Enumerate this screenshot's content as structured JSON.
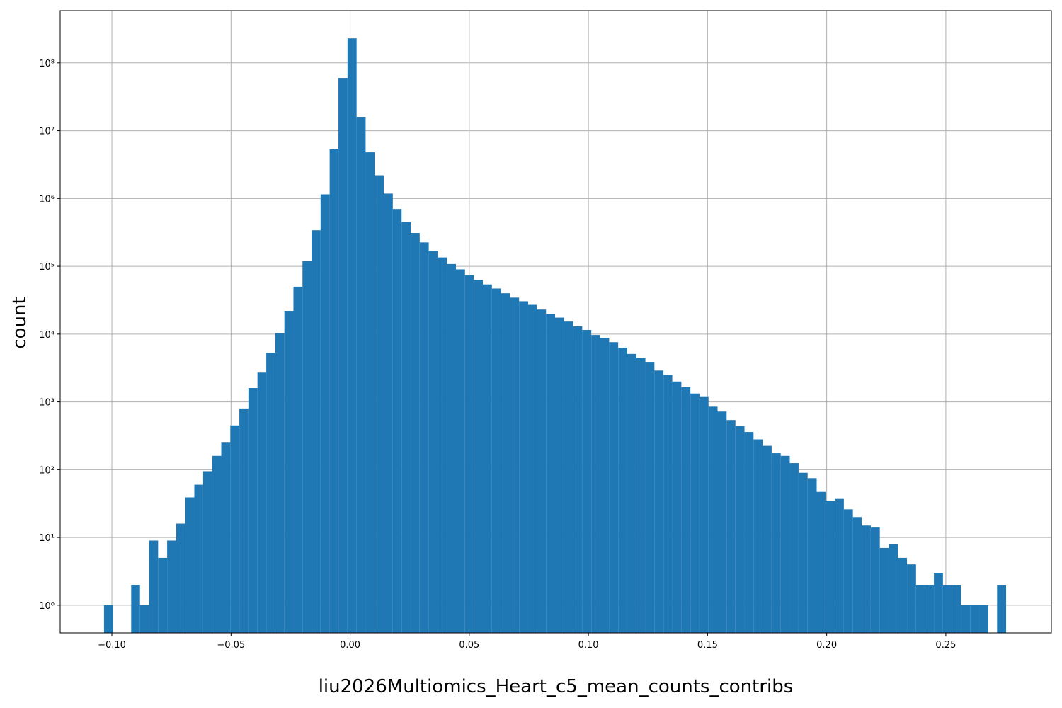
{
  "chart_data": {
    "type": "histogram",
    "xlabel": "liu2026Multiomics_Heart_c5_mean_counts_contribs",
    "ylabel": "count",
    "color": "#1f77b4",
    "log_y": true,
    "grid": true,
    "bins": [
      -0.1033,
      -0.0995,
      -0.0957,
      -0.0919,
      -0.0882,
      -0.0844,
      -0.0806,
      -0.0768,
      -0.073,
      -0.0692,
      -0.0654,
      -0.0617,
      -0.0579,
      -0.0541,
      -0.0503,
      -0.0465,
      -0.0427,
      -0.0389,
      -0.0352,
      -0.0314,
      -0.0276,
      -0.0238,
      -0.02,
      -0.0162,
      -0.0124,
      -0.0086,
      -0.0049,
      -0.0011,
      0.0027,
      0.0065,
      0.0103,
      0.0141,
      0.0179,
      0.0216,
      0.0254,
      0.0292,
      0.033,
      0.0368,
      0.0406,
      0.0444,
      0.0482,
      0.0519,
      0.0557,
      0.0595,
      0.0633,
      0.0671,
      0.0709,
      0.0747,
      0.0784,
      0.0822,
      0.086,
      0.0898,
      0.0936,
      0.0974,
      0.1012,
      0.1049,
      0.1087,
      0.1125,
      0.1163,
      0.1201,
      0.1239,
      0.1277,
      0.1315,
      0.1352,
      0.139,
      0.1428,
      0.1466,
      0.1504,
      0.1542,
      0.158,
      0.1617,
      0.1655,
      0.1693,
      0.1731,
      0.1769,
      0.1807,
      0.1845,
      0.1882,
      0.192,
      0.1958,
      0.1996,
      0.2034,
      0.2072,
      0.211,
      0.2147,
      0.2185,
      0.2223,
      0.2261,
      0.2299,
      0.2337,
      0.2375,
      0.2413,
      0.245,
      0.2488,
      0.2526,
      0.2564,
      0.2602,
      0.264,
      0.2678,
      0.2715,
      0.2753
    ],
    "values": [
      1,
      0,
      0,
      2,
      1,
      9,
      5,
      9,
      16,
      39,
      60,
      95,
      160,
      250,
      450,
      800,
      1600,
      2700,
      5300,
      10300,
      22000,
      50000,
      120000,
      340000,
      1150000,
      5300000,
      60000000,
      230000000,
      16000000,
      4800000,
      2200000,
      1180000,
      700000,
      450000,
      310000,
      225000,
      170000,
      135000,
      108000,
      90000,
      74000,
      63000,
      54000,
      47000,
      40000,
      34500,
      30500,
      27000,
      23000,
      20000,
      17500,
      15300,
      13000,
      11500,
      9700,
      8800,
      7600,
      6300,
      5100,
      4400,
      3800,
      2900,
      2500,
      2000,
      1650,
      1330,
      1180,
      850,
      720,
      540,
      440,
      360,
      280,
      225,
      175,
      160,
      125,
      90,
      75,
      47,
      35,
      37,
      26,
      20,
      15,
      14,
      7,
      8,
      5,
      4,
      2,
      2,
      3,
      2,
      2,
      1,
      1,
      1,
      0,
      2
    ],
    "xlim": [
      -0.1217,
      0.2943
    ],
    "ylim": [
      0.39,
      590000000
    ],
    "xticks": [
      {
        "value": -0.1,
        "label": "−0.10"
      },
      {
        "value": -0.05,
        "label": "−0.05"
      },
      {
        "value": 0,
        "label": "0.00"
      },
      {
        "value": 0.05,
        "label": "0.05"
      },
      {
        "value": 0.1,
        "label": "0.10"
      },
      {
        "value": 0.15,
        "label": "0.15"
      },
      {
        "value": 0.2,
        "label": "0.20"
      },
      {
        "value": 0.25,
        "label": "0.25"
      }
    ],
    "yticks": [
      {
        "value": 1,
        "label": "10⁰"
      },
      {
        "value": 10,
        "label": "10¹"
      },
      {
        "value": 100,
        "label": "10²"
      },
      {
        "value": 1000,
        "label": "10³"
      },
      {
        "value": 10000,
        "label": "10⁴"
      },
      {
        "value": 100000,
        "label": "10⁵"
      },
      {
        "value": 1000000,
        "label": "10⁶"
      },
      {
        "value": 10000000,
        "label": "10⁷"
      },
      {
        "value": 100000000,
        "label": "10⁸"
      }
    ]
  }
}
